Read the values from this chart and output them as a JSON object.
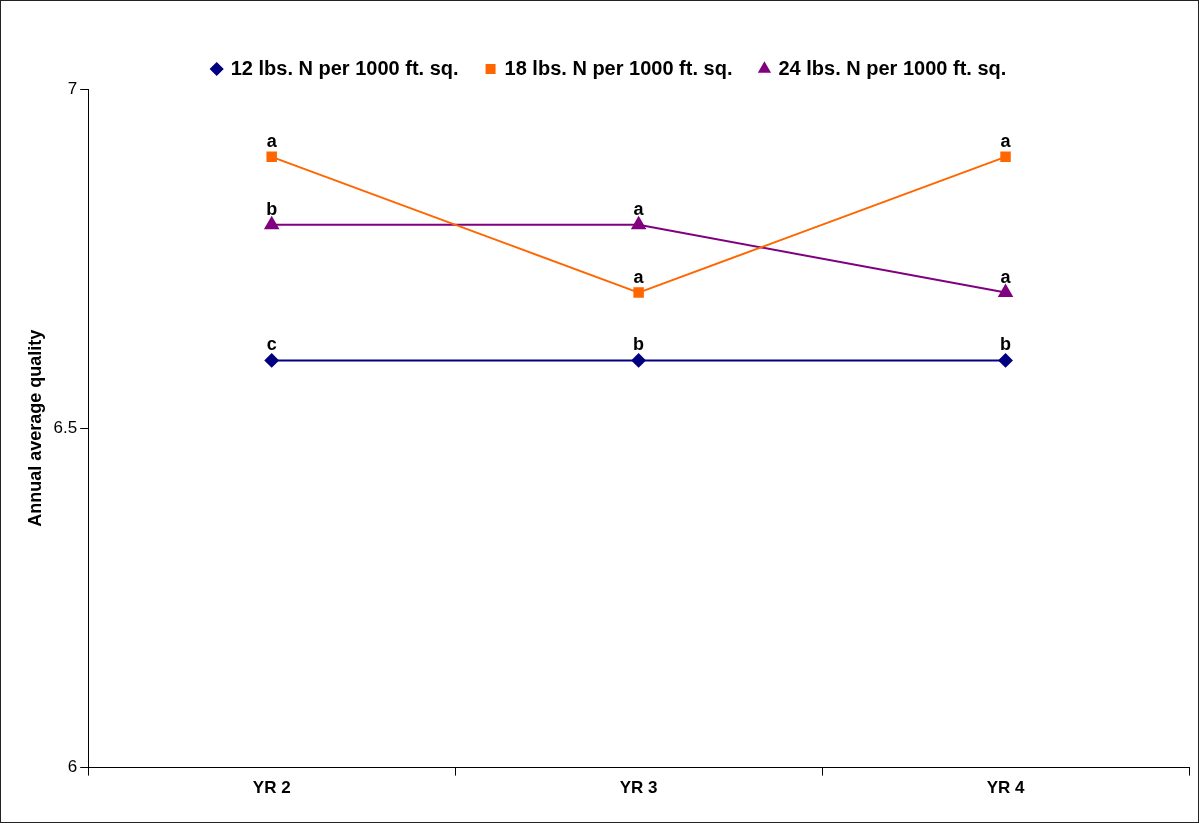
{
  "chart_data": {
    "type": "line",
    "ylabel": "Annual average quality",
    "categories": [
      "YR 2",
      "YR 3",
      "YR 4"
    ],
    "series": [
      {
        "name": "12 lbs. N per 1000 ft. sq.",
        "color": "#000080",
        "marker": "diamond",
        "values": [
          6.6,
          6.6,
          6.6
        ]
      },
      {
        "name": "18 lbs. N per 1000 ft. sq.",
        "color": "#ff6600",
        "marker": "square",
        "values": [
          6.9,
          6.7,
          6.9
        ]
      },
      {
        "name": "24 lbs. N per 1000 ft. sq.",
        "color": "#800080",
        "marker": "triangle",
        "values": [
          6.8,
          6.8,
          6.7
        ]
      }
    ],
    "ylim": [
      6,
      7
    ],
    "yticks": [
      6,
      6.5,
      7
    ],
    "grid": false,
    "legend": "top",
    "annotations": [
      {
        "text": "c",
        "x": "YR 2",
        "y": 6.6
      },
      {
        "text": "b",
        "x": "YR 3",
        "y": 6.6
      },
      {
        "text": "b",
        "x": "YR 4",
        "y": 6.6
      },
      {
        "text": "a",
        "x": "YR 2",
        "y": 6.9
      },
      {
        "text": "a",
        "x": "YR 3",
        "y": 6.7
      },
      {
        "text": "a",
        "x": "YR 4",
        "y": 6.9
      },
      {
        "text": "b",
        "x": "YR 2",
        "y": 6.8
      },
      {
        "text": "a",
        "x": "YR 3",
        "y": 6.8
      },
      {
        "text": "a",
        "x": "YR 4",
        "y": 6.7
      }
    ]
  }
}
